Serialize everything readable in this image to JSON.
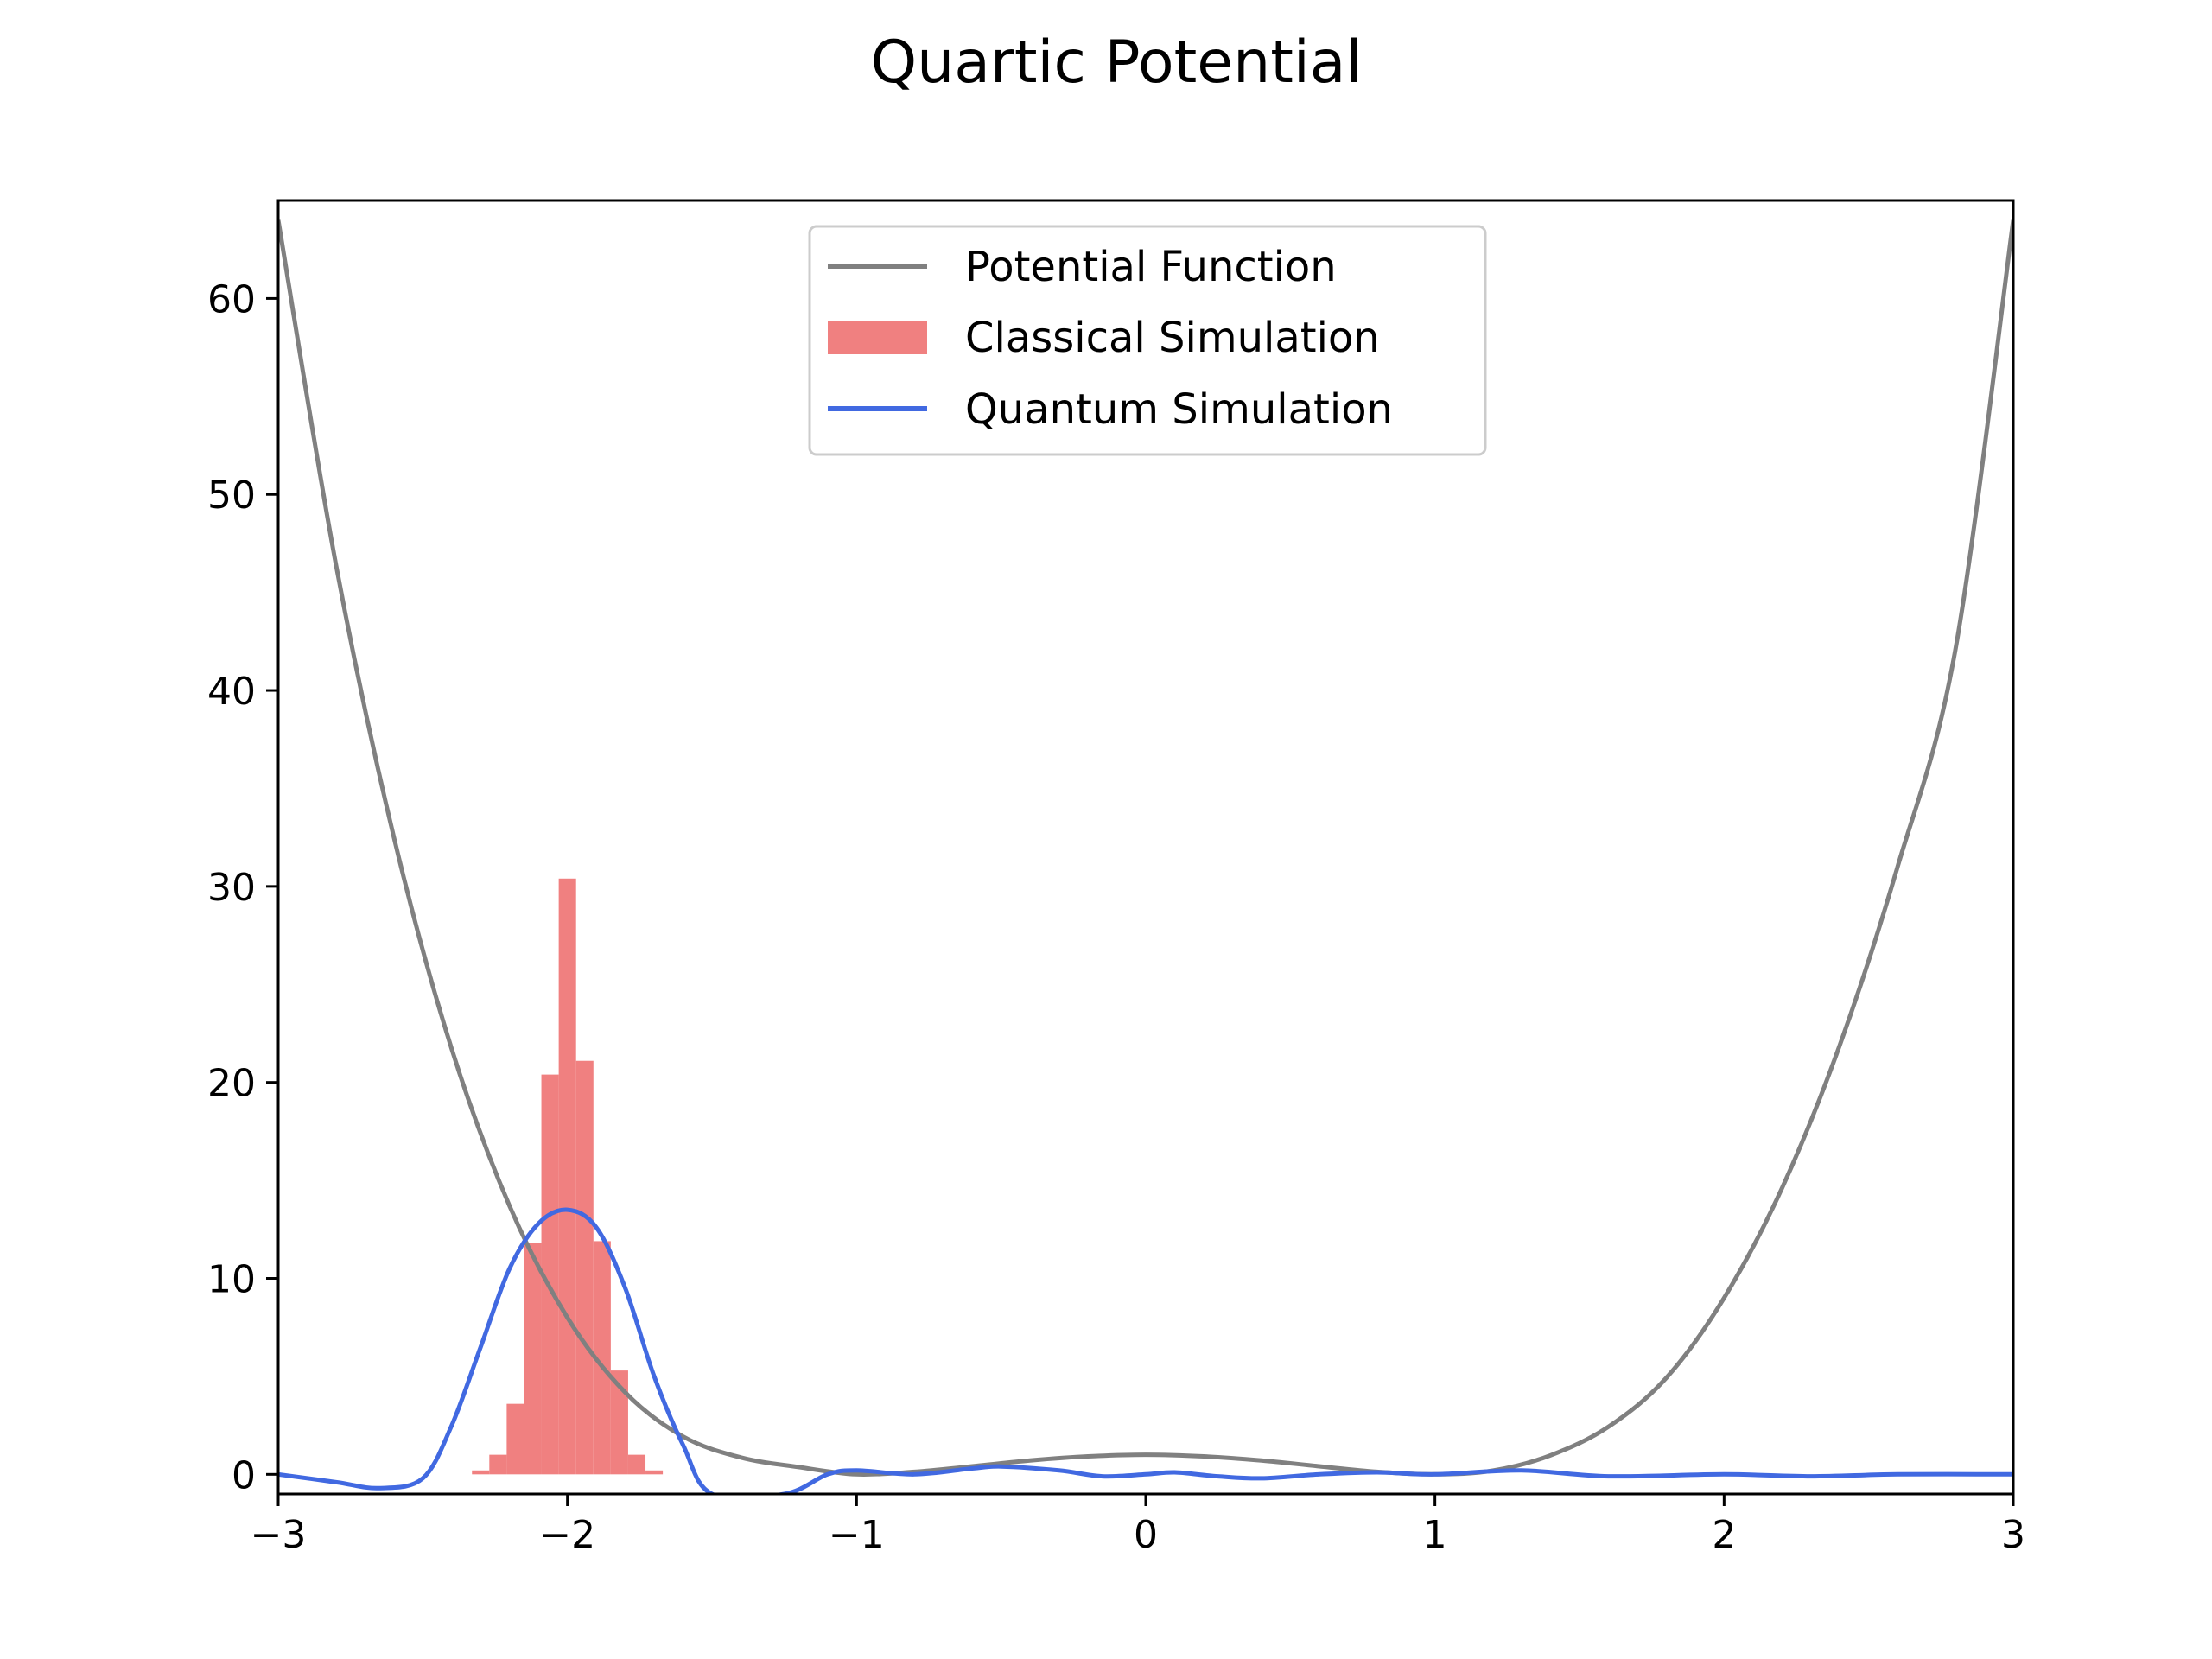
{
  "chart_data": {
    "type": "line",
    "title": "Quartic Potential",
    "xlabel": "",
    "ylabel": "",
    "xlim": [
      -3,
      3
    ],
    "ylim": [
      -1,
      65
    ],
    "xticks": [
      -3,
      -2,
      -1,
      0,
      1,
      2,
      3
    ],
    "xtick_labels": [
      "−3",
      "−2",
      "−1",
      "0",
      "1",
      "2",
      "3"
    ],
    "yticks": [
      0,
      10,
      20,
      30,
      40,
      50,
      60
    ],
    "ytick_labels": [
      "0",
      "10",
      "20",
      "30",
      "40",
      "50",
      "60"
    ],
    "grid": false,
    "legend_position": "top-center",
    "series": [
      {
        "name": "Potential Function",
        "kind": "line",
        "color": "#808080",
        "x": [
          -3.0,
          -2.8,
          -2.6,
          -2.4,
          -2.2,
          -2.0,
          -1.8,
          -1.6,
          -1.4,
          -1.2,
          -1.0,
          -0.8,
          -0.6,
          -0.4,
          -0.2,
          0.0,
          0.2,
          0.4,
          0.6,
          0.8,
          1.0,
          1.2,
          1.4,
          1.6,
          1.8,
          2.0,
          2.2,
          2.4,
          2.6,
          2.8,
          3.0
        ],
        "y": [
          64.0,
          46.4,
          32.5,
          21.7,
          13.7,
          8.0,
          4.18,
          1.93,
          0.86,
          0.37,
          0.0,
          0.13,
          0.41,
          0.71,
          0.92,
          1.0,
          0.92,
          0.71,
          0.41,
          0.13,
          0.0,
          0.19,
          0.97,
          2.43,
          4.92,
          9.0,
          14.6,
          21.9,
          31.0,
          42.1,
          64.0
        ]
      },
      {
        "name": "Classical Simulation",
        "kind": "histogram",
        "color": "#f08080",
        "bin_edges": [
          -2.33,
          -2.27,
          -2.21,
          -2.15,
          -2.09,
          -2.03,
          -1.97,
          -1.91,
          -1.85,
          -1.79,
          -1.73,
          -1.67
        ],
        "values": [
          0.2,
          1.0,
          3.6,
          11.8,
          20.4,
          30.4,
          21.1,
          11.9,
          5.3,
          1.0,
          0.2
        ]
      },
      {
        "name": "Quantum Simulation",
        "kind": "line",
        "color": "#4169e1",
        "x": [
          -3.0,
          -2.8,
          -2.65,
          -2.5,
          -2.4,
          -2.3,
          -2.2,
          -2.1,
          -2.0,
          -1.9,
          -1.8,
          -1.7,
          -1.6,
          -1.5,
          -1.25,
          -1.1,
          -1.0,
          -0.8,
          -0.6,
          -0.5,
          -0.3,
          -0.15,
          0.0,
          0.1,
          0.25,
          0.4,
          0.6,
          0.8,
          1.0,
          1.3,
          1.6,
          2.0,
          2.3,
          2.6,
          3.0
        ],
        "y": [
          0.0,
          -0.4,
          -0.7,
          -0.2,
          2.5,
          6.5,
          10.5,
          12.8,
          13.5,
          12.6,
          9.5,
          5.0,
          1.5,
          -1.0,
          -1.0,
          0.0,
          0.2,
          0.0,
          0.3,
          0.4,
          0.2,
          -0.1,
          0.0,
          0.1,
          -0.1,
          -0.2,
          0.0,
          0.1,
          0.0,
          0.2,
          -0.1,
          0.0,
          -0.1,
          0.0,
          0.0
        ]
      }
    ]
  }
}
